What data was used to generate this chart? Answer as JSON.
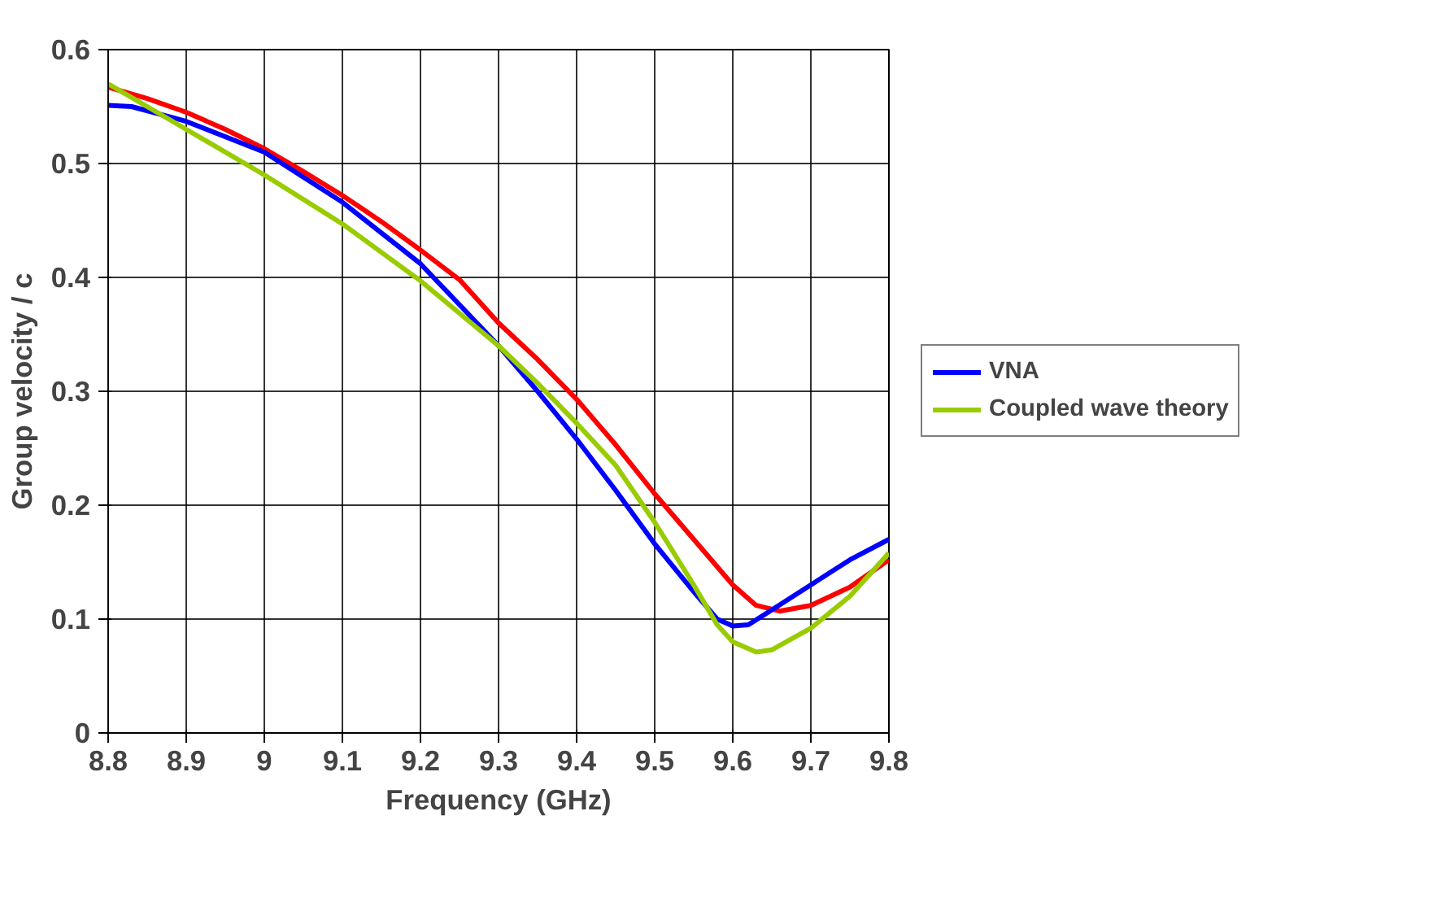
{
  "chart_data": {
    "type": "line",
    "xlabel": "Frequency (GHz)",
    "ylabel": "Group velocity / c",
    "xlim": [
      8.8,
      9.8
    ],
    "xticks": [
      8.8,
      8.9,
      9,
      9.1,
      9.2,
      9.3,
      9.4,
      9.5,
      9.6,
      9.7,
      9.8
    ],
    "ylim": [
      0,
      0.6
    ],
    "yticks": [
      0,
      0.1,
      0.2,
      0.3,
      0.4,
      0.5,
      0.6
    ],
    "grid": true,
    "legend": "right",
    "marker": "none",
    "line_style": "solid",
    "series": [
      {
        "color": "#ff0000",
        "x": [
          8.8,
          8.85,
          8.9,
          8.95,
          9.0,
          9.05,
          9.1,
          9.15,
          9.2,
          9.25,
          9.3,
          9.35,
          9.4,
          9.45,
          9.5,
          9.55,
          9.6,
          9.63,
          9.66,
          9.7,
          9.75,
          9.8
        ],
        "values": [
          0.567,
          0.557,
          0.545,
          0.53,
          0.513,
          0.493,
          0.472,
          0.449,
          0.424,
          0.398,
          0.36,
          0.328,
          0.293,
          0.253,
          0.21,
          0.17,
          0.13,
          0.112,
          0.107,
          0.112,
          0.128,
          0.152
        ]
      },
      {
        "name": "VNA",
        "color": "#0000ff",
        "x": [
          8.8,
          8.83,
          8.9,
          9.0,
          9.1,
          9.2,
          9.3,
          9.35,
          9.4,
          9.45,
          9.5,
          9.55,
          9.58,
          9.6,
          9.62,
          9.65,
          9.7,
          9.75,
          9.8
        ],
        "values": [
          0.551,
          0.55,
          0.537,
          0.51,
          0.466,
          0.412,
          0.34,
          0.3,
          0.258,
          0.213,
          0.166,
          0.124,
          0.1,
          0.094,
          0.095,
          0.108,
          0.13,
          0.152,
          0.17
        ]
      },
      {
        "name": "Coupled wave theory",
        "color": "#99cc00",
        "x": [
          8.8,
          8.9,
          9.0,
          9.1,
          9.2,
          9.3,
          9.35,
          9.4,
          9.45,
          9.5,
          9.55,
          9.58,
          9.6,
          9.63,
          9.65,
          9.7,
          9.75,
          9.8
        ],
        "values": [
          0.57,
          0.53,
          0.49,
          0.447,
          0.397,
          0.34,
          0.307,
          0.272,
          0.235,
          0.185,
          0.13,
          0.095,
          0.08,
          0.071,
          0.073,
          0.092,
          0.12,
          0.158
        ]
      }
    ]
  }
}
